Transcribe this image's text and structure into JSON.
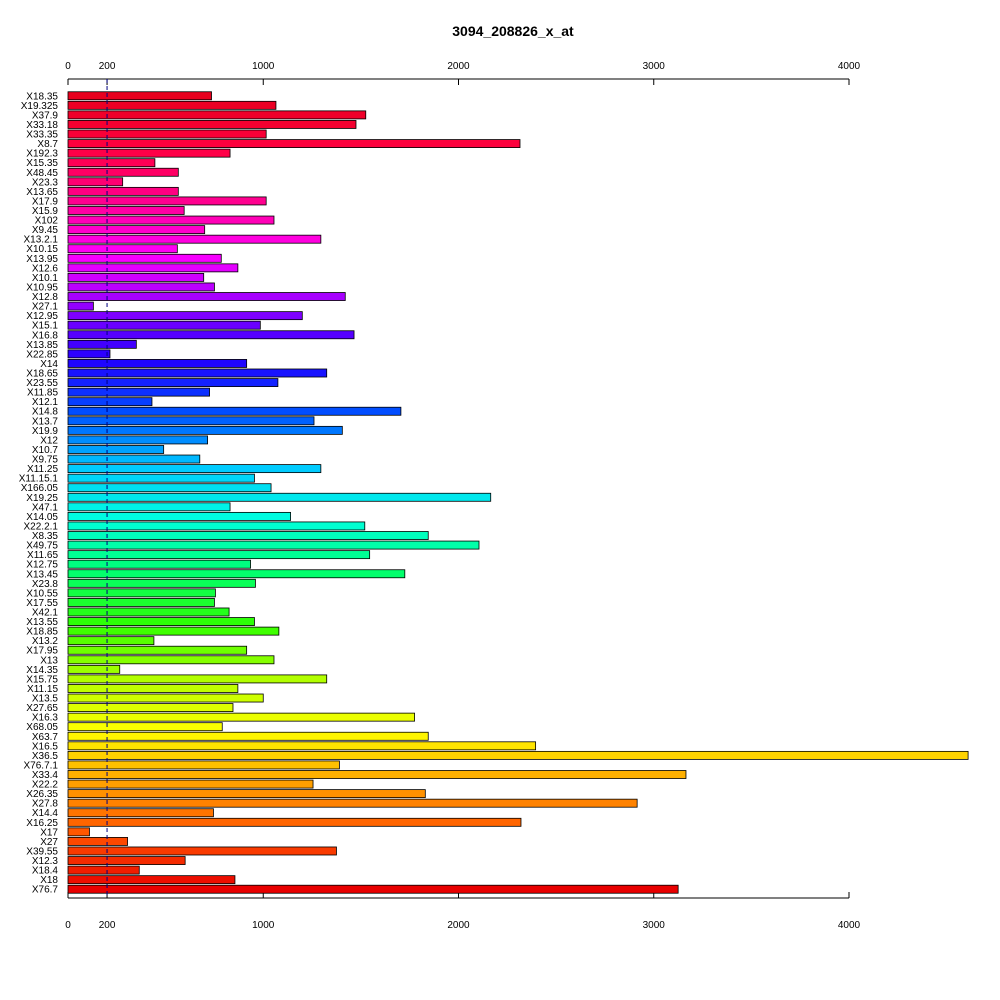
{
  "chart_data": {
    "type": "bar",
    "orientation": "horizontal",
    "title": "3094_208826_x_at",
    "xlabel": "",
    "ylabel": "",
    "xlim": [
      0,
      4600
    ],
    "xticks": [
      0,
      200,
      1000,
      2000,
      3000,
      4000
    ],
    "reference_line": 200,
    "categories": [
      "X18.35",
      "X19.325",
      "X37.9",
      "X33.18",
      "X33.35",
      "X8.7",
      "X192.3",
      "X15.35",
      "X48.45",
      "X23.3",
      "X13.65",
      "X17.9",
      "X15.9",
      "X102",
      "X9.45",
      "X13.2.1",
      "X10.15",
      "X13.95",
      "X12.6",
      "X10.1",
      "X10.95",
      "X12.8",
      "X27.1",
      "X12.95",
      "X15.1",
      "X16.8",
      "X13.85",
      "X22.85",
      "X14",
      "X18.65",
      "X23.55",
      "X11.85",
      "X12.1",
      "X14.8",
      "X13.7",
      "X19.9",
      "X12",
      "X10.7",
      "X9.75",
      "X11.25",
      "X11.15.1",
      "X166.05",
      "X19.25",
      "X47.1",
      "X14.05",
      "X22.2.1",
      "X8.35",
      "X49.75",
      "X11.65",
      "X12.75",
      "X13.45",
      "X23.8",
      "X10.55",
      "X17.55",
      "X42.1",
      "X13.55",
      "X18.85",
      "X13.2",
      "X17.95",
      "X13",
      "X14.35",
      "X15.75",
      "X11.15",
      "X13.5",
      "X27.65",
      "X16.3",
      "X68.05",
      "X63.7",
      "X16.5",
      "X36.5",
      "X76.7.1",
      "X33.4",
      "X22.2",
      "X26.35",
      "X27.8",
      "X14.4",
      "X16.25",
      "X17",
      "X27",
      "X39.55",
      "X12.3",
      "X18.4",
      "X18",
      "X76.7"
    ],
    "values": [
      735,
      1065,
      1525,
      1475,
      1015,
      2315,
      830,
      445,
      565,
      280,
      565,
      1015,
      595,
      1055,
      700,
      1295,
      560,
      785,
      870,
      695,
      750,
      1420,
      130,
      1200,
      985,
      1465,
      350,
      215,
      915,
      1325,
      1075,
      725,
      430,
      1705,
      1260,
      1405,
      715,
      490,
      675,
      1295,
      955,
      1040,
      2165,
      830,
      1140,
      1520,
      1845,
      2105,
      1545,
      935,
      1725,
      960,
      755,
      750,
      825,
      955,
      1080,
      440,
      915,
      1055,
      265,
      1325,
      870,
      1000,
      845,
      1775,
      790,
      1845,
      2395,
      4610,
      1390,
      3165,
      1255,
      1830,
      2915,
      745,
      2320,
      110,
      305,
      1375,
      600,
      365,
      855,
      3125
    ],
    "colors": [
      "#FF0029",
      "#FF002F",
      "#FF0035",
      "#FF003C",
      "#FF0042",
      "#FF0048",
      "#FF004E",
      "#FF0054",
      "#FF005A",
      "#FF0060",
      "#FF0066",
      "#FF006C",
      "#FF0072",
      "#FF0078",
      "#FF007E",
      "#FF0085",
      "#FF008B",
      "#FF0091",
      "#FF0097",
      "#FF009D",
      "#FF00A3",
      "#FF00A9",
      "#FF00AF",
      "#FF00B5",
      "#FF00BB",
      "#FF00C1",
      "#FF00C7",
      "#FF00CE",
      "#FF00D4",
      "#FF00DA",
      "#FF00E0",
      "#FF00E6",
      "#FF00EC",
      "#FF00F2",
      "#FF00F8",
      "#FF00FE",
      "#FF00FF",
      "#F900FF",
      "#F300FF",
      "#ED00FF",
      "#E700FF",
      "#E100FF",
      "#DB00FF",
      "#D500FF",
      "#CF00FF",
      "#C900FF",
      "#C200FF",
      "#BC00FF",
      "#B600FF",
      "#B000FF",
      "#AA00FF",
      "#A400FF",
      "#9E00FF",
      "#9800FF",
      "#9200FF",
      "#8C00FF",
      "#8600FF",
      "#7F00FF",
      "#7900FF",
      "#7300FF",
      "#6D00FF",
      "#6700FF",
      "#6100FF",
      "#5B00FF",
      "#5500FF",
      "#4F00FF",
      "#4900FF",
      "#4300FF",
      "#3C00FF",
      "#3600FF",
      "#3000FF",
      "#2A00FF",
      "#2400FF",
      "#1E00FF",
      "#1800FF",
      "#1200FF",
      "#0C00FF",
      "#0600FF",
      "#0000FF",
      "#FF2400",
      "#FF1E00",
      "#FF1800",
      "#FF1200",
      "#FF0C00"
    ],
    "color_spectrum": [
      "#E8001E",
      "#FF0040",
      "#FF0090",
      "#FF00FF",
      "#9000FF",
      "#2000FF",
      "#0050FF",
      "#00C8FF",
      "#00FFE0",
      "#00FF70",
      "#30FF00",
      "#B0FF00",
      "#FFFF00",
      "#FFA000",
      "#FF5000",
      "#E80000"
    ]
  }
}
